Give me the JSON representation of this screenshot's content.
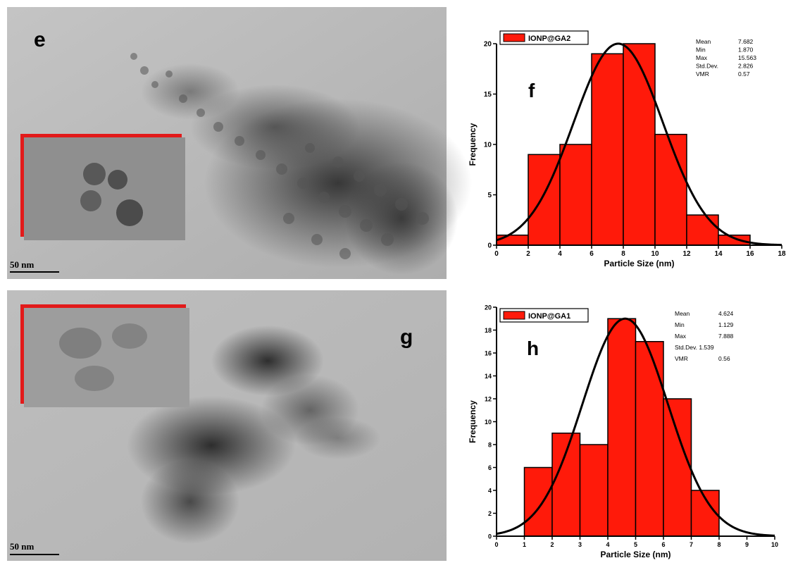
{
  "tem_panels": [
    {
      "letter": "e",
      "scale_label": "50 nm"
    },
    {
      "letter": "g",
      "scale_label": "50 nm"
    }
  ],
  "chart_data": [
    {
      "type": "bar",
      "panel_letter": "f",
      "legend": "IONP@GA2",
      "xlabel": "Particle Size (nm)",
      "ylabel": "Frequency",
      "xlim": [
        0,
        18
      ],
      "ylim": [
        0,
        20
      ],
      "xticks": [
        0,
        2,
        4,
        6,
        8,
        10,
        12,
        14,
        16,
        18
      ],
      "yticks": [
        0,
        5,
        10,
        15,
        20
      ],
      "bins": [
        [
          0,
          2
        ],
        [
          2,
          4
        ],
        [
          4,
          6
        ],
        [
          6,
          8
        ],
        [
          8,
          10
        ],
        [
          10,
          12
        ],
        [
          12,
          14
        ],
        [
          14,
          16
        ]
      ],
      "values": [
        1,
        9,
        10,
        19,
        20,
        11,
        3,
        1
      ],
      "fit": {
        "type": "normal",
        "mean": 7.682,
        "sd": 2.826,
        "peak": 20
      },
      "stats": [
        {
          "label": "Mean",
          "value": "7.682"
        },
        {
          "label": "Min",
          "value": "1.870"
        },
        {
          "label": "Max",
          "value": "15.563"
        },
        {
          "label": "Std.Dev.",
          "value": "2.826"
        },
        {
          "label": "VMR",
          "value": "0.57"
        }
      ],
      "bar_color": "#ff1a0a"
    },
    {
      "type": "bar",
      "panel_letter": "h",
      "legend": "IONP@GA1",
      "xlabel": "Particle Size (nm)",
      "ylabel": "Frequency",
      "xlim": [
        0,
        10
      ],
      "ylim": [
        0,
        20
      ],
      "xticks": [
        0,
        1,
        2,
        3,
        4,
        5,
        6,
        7,
        8,
        9,
        10
      ],
      "yticks": [
        0,
        2,
        4,
        6,
        8,
        10,
        12,
        14,
        16,
        18,
        20
      ],
      "bins": [
        [
          1,
          2
        ],
        [
          2,
          3
        ],
        [
          3,
          4
        ],
        [
          4,
          5
        ],
        [
          5,
          6
        ],
        [
          6,
          7
        ],
        [
          7,
          8
        ]
      ],
      "values": [
        6,
        9,
        8,
        19,
        17,
        12,
        4
      ],
      "fit": {
        "type": "normal",
        "mean": 4.624,
        "sd": 1.539,
        "peak": 19
      },
      "stats": [
        {
          "label": "Mean",
          "value": "4.624"
        },
        {
          "label": "Min",
          "value": "1.129"
        },
        {
          "label": "Max",
          "value": "7.888"
        },
        {
          "label": "Std.Dev.  1.539",
          "value": ""
        },
        {
          "label": "VMR",
          "value": "0.56"
        }
      ],
      "bar_color": "#ff1a0a"
    }
  ]
}
